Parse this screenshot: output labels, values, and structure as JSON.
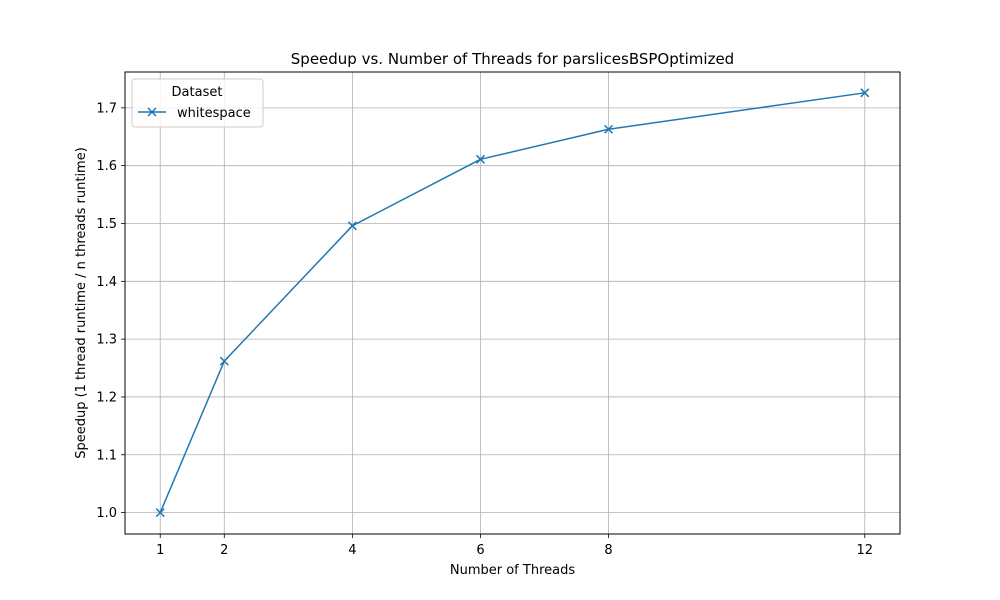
{
  "chart_data": {
    "type": "line",
    "title": "Speedup vs. Number of Threads for parslicesBSPOptimized",
    "xlabel": "Number of Threads",
    "ylabel": "Speedup (1 thread runtime / n threads runtime)",
    "x": [
      1,
      2,
      4,
      6,
      8,
      12
    ],
    "x_ticks": [
      1,
      2,
      4,
      6,
      8,
      12
    ],
    "x_tick_labels": [
      "1",
      "2",
      "4",
      "6",
      "8",
      "12"
    ],
    "xlim": [
      0.45,
      12.55
    ],
    "y_ticks": [
      1.0,
      1.1,
      1.2,
      1.3,
      1.4,
      1.5,
      1.6,
      1.7
    ],
    "y_tick_labels": [
      "1.0",
      "1.1",
      "1.2",
      "1.3",
      "1.4",
      "1.5",
      "1.6",
      "1.7"
    ],
    "ylim": [
      0.963,
      1.762
    ],
    "grid": true,
    "legend": {
      "title": "Dataset",
      "placement": "upper-left"
    },
    "series": [
      {
        "name": "whitespace",
        "color": "#1f77b4",
        "marker": "x",
        "values": [
          1.0,
          1.262,
          1.496,
          1.611,
          1.663,
          1.726
        ]
      }
    ]
  }
}
